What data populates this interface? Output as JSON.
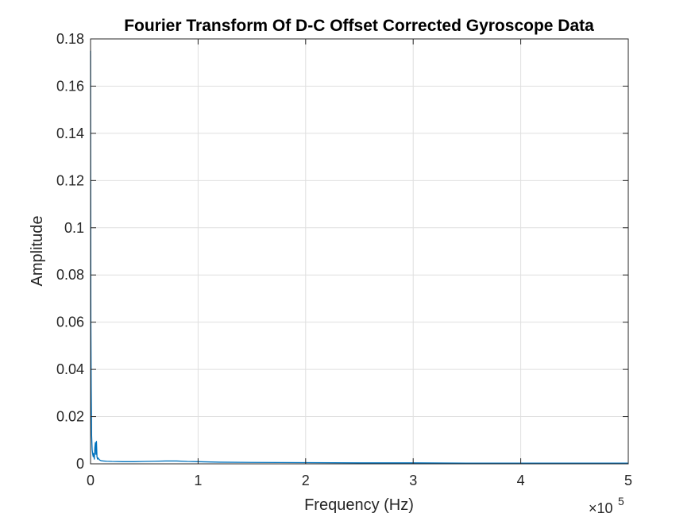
{
  "chart_data": {
    "type": "line",
    "title": "Fourier Transform Of D-C Offset Corrected Gyroscope Data",
    "xlabel": "Frequency (Hz)",
    "ylabel": "Amplitude",
    "xlim": [
      0,
      500000
    ],
    "ylim": [
      0,
      0.18
    ],
    "x_multiplier_label": "×10",
    "x_multiplier_exponent": "5",
    "x_ticks": [
      0,
      100000,
      200000,
      300000,
      400000,
      500000
    ],
    "x_tick_labels": [
      "0",
      "1",
      "2",
      "3",
      "4",
      "5"
    ],
    "y_ticks": [
      0,
      0.02,
      0.04,
      0.06,
      0.08,
      0.1,
      0.12,
      0.14,
      0.16,
      0.18
    ],
    "y_tick_labels": [
      "0",
      "0.02",
      "0.04",
      "0.06",
      "0.08",
      "0.1",
      "0.12",
      "0.14",
      "0.16",
      "0.18"
    ],
    "grid": true,
    "color": "#0072BD",
    "series": [
      {
        "x": [
          0,
          300,
          600,
          1000,
          1500,
          2000,
          2500,
          3000,
          3500,
          4000,
          4500,
          5000,
          5500,
          6000,
          6500,
          7000,
          8000,
          9000,
          10000,
          12000,
          15000,
          20000,
          30000,
          40000,
          50000,
          60000,
          70000,
          80000,
          90000,
          100000,
          120000,
          150000,
          200000,
          250000,
          300000,
          350000,
          400000,
          450000,
          500000
        ],
        "y": [
          0.175,
          0.06,
          0.033,
          0.012,
          0.006,
          0.004,
          0.003,
          0.0045,
          0.002,
          0.007,
          0.009,
          0.004,
          0.0095,
          0.003,
          0.002,
          0.0025,
          0.0018,
          0.0015,
          0.0013,
          0.0012,
          0.0011,
          0.001,
          0.0009,
          0.0009,
          0.001,
          0.0011,
          0.0012,
          0.0012,
          0.001,
          0.0009,
          0.0007,
          0.0006,
          0.0005,
          0.0004,
          0.0004,
          0.0003,
          0.0003,
          0.0003,
          0.0003
        ]
      }
    ]
  }
}
